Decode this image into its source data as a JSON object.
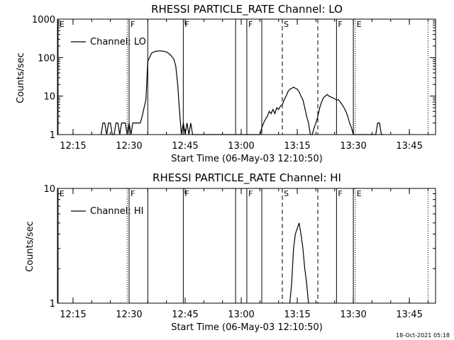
{
  "footer_text": "18-Oct-2021 05:18",
  "chart_data": [
    {
      "type": "line",
      "title": "RHESSI PARTICLE_RATE Channel: LO",
      "xlabel": "Start Time (06-May-03 12:10:50)",
      "ylabel": "Counts/sec",
      "yscale": "log",
      "ylim": [
        1,
        1000
      ],
      "yticks": [
        1,
        10,
        100,
        1000
      ],
      "ytick_labels": [
        "1",
        "10",
        "100",
        "1000"
      ],
      "xlim": [
        "12:10:50",
        "13:52:00"
      ],
      "xtick_labels": [
        "12:15",
        "12:30",
        "12:45",
        "13:00",
        "13:15",
        "13:30",
        "13:45"
      ],
      "legend": {
        "position": "top-left",
        "entries": [
          "Channel: LO"
        ]
      },
      "series": [
        {
          "name": "Channel: LO",
          "x": [
            "12:22:30",
            "12:23:00",
            "12:23:30",
            "12:24:00",
            "12:24:30",
            "12:25:00",
            "12:25:30",
            "12:26:00",
            "12:26:30",
            "12:27:00",
            "12:27:30",
            "12:28:00",
            "12:28:30",
            "12:29:00",
            "12:29:30",
            "12:30:00",
            "12:30:30",
            "12:31:00",
            "12:31:30",
            "12:32:00",
            "12:32:30",
            "12:33:00",
            "12:33:30",
            "12:34:00",
            "12:34:30",
            "12:35:00",
            "12:36:00",
            "12:37:00",
            "12:38:00",
            "12:39:00",
            "12:40:00",
            "12:41:00",
            "12:42:00",
            "12:42:30",
            "12:43:00",
            "12:43:30",
            "12:44:00",
            "12:44:30",
            "12:45:00",
            "12:45:30",
            "12:46:00",
            "12:46:30",
            "12:47:00",
            "13:05:00",
            "13:05:30",
            "13:06:00",
            "13:06:30",
            "13:07:00",
            "13:07:30",
            "13:08:00",
            "13:08:30",
            "13:09:00",
            "13:09:30",
            "13:10:00",
            "13:10:30",
            "13:11:00",
            "13:11:30",
            "13:12:00",
            "13:12:30",
            "13:13:00",
            "13:13:30",
            "13:14:00",
            "13:14:30",
            "13:15:00",
            "13:15:30",
            "13:16:00",
            "13:16:30",
            "13:17:00",
            "13:17:30",
            "13:18:00",
            "13:18:30",
            "13:19:00",
            "13:19:30",
            "13:20:00",
            "13:20:30",
            "13:21:00",
            "13:21:30",
            "13:22:00",
            "13:22:30",
            "13:23:00",
            "13:23:30",
            "13:24:00",
            "13:24:30",
            "13:25:00",
            "13:25:30",
            "13:26:00",
            "13:26:30",
            "13:27:00",
            "13:27:30",
            "13:28:00",
            "13:28:30",
            "13:29:00",
            "13:29:30",
            "13:30:00",
            "13:30:30",
            "13:31:00",
            "13:31:30",
            "13:32:00",
            "13:32:30",
            "13:33:00",
            "13:36:00",
            "13:36:30",
            "13:37:00",
            "13:37:30",
            "13:38:00"
          ],
          "y": [
            1,
            2,
            2,
            1,
            2,
            2,
            1,
            1,
            2,
            2,
            1,
            2,
            2,
            2,
            1,
            2,
            1,
            2,
            2,
            2,
            2,
            2,
            3,
            5,
            8,
            80,
            130,
            145,
            150,
            148,
            140,
            120,
            90,
            60,
            20,
            4,
            1,
            2,
            1,
            2,
            1,
            2,
            1,
            1,
            1.5,
            2,
            2.5,
            3,
            4,
            3.5,
            4.5,
            3.5,
            5,
            4.5,
            5.5,
            6,
            8,
            10,
            13,
            15,
            16,
            17,
            16,
            15,
            13,
            10,
            8,
            5,
            3,
            2,
            1,
            1,
            1.5,
            2,
            3,
            5,
            7,
            9,
            10,
            11,
            10,
            9.5,
            9,
            8.5,
            8,
            8,
            7,
            6,
            5,
            4,
            3,
            2,
            1.5,
            1,
            1,
            1,
            1,
            1,
            1,
            1,
            1,
            2,
            2,
            1,
            1
          ]
        }
      ],
      "vertical_markers": [
        {
          "time": "12:11:00",
          "style": "solid",
          "label": "E"
        },
        {
          "time": "12:29:30",
          "style": "dotted",
          "label": ""
        },
        {
          "time": "12:30:00",
          "style": "solid",
          "label": "F"
        },
        {
          "time": "12:35:00",
          "style": "solid",
          "label": ""
        },
        {
          "time": "12:44:30",
          "style": "solid",
          "label": "F"
        },
        {
          "time": "12:58:30",
          "style": "solid",
          "label": ""
        },
        {
          "time": "13:01:30",
          "style": "solid",
          "label": "F"
        },
        {
          "time": "13:05:30",
          "style": "solid",
          "label": ""
        },
        {
          "time": "13:11:00",
          "style": "dashed",
          "label": "S"
        },
        {
          "time": "13:20:30",
          "style": "dashed",
          "label": ""
        },
        {
          "time": "13:25:30",
          "style": "solid",
          "label": "F"
        },
        {
          "time": "13:30:00",
          "style": "solid",
          "label": ""
        },
        {
          "time": "13:30:30",
          "style": "dotted",
          "label": "E"
        },
        {
          "time": "13:50:00",
          "style": "dotted",
          "label": ""
        }
      ]
    },
    {
      "type": "line",
      "title": "RHESSI PARTICLE_RATE Channel: HI",
      "xlabel": "Start Time (06-May-03 12:10:50)",
      "ylabel": "Counts/sec",
      "yscale": "log",
      "ylim": [
        1,
        10
      ],
      "yticks": [
        1,
        10
      ],
      "ytick_labels": [
        "1",
        "10"
      ],
      "xlim": [
        "12:10:50",
        "13:52:00"
      ],
      "xtick_labels": [
        "12:15",
        "12:30",
        "12:45",
        "13:00",
        "13:15",
        "13:30",
        "13:45"
      ],
      "legend": {
        "position": "top-left",
        "entries": [
          "Channel: HI"
        ]
      },
      "series": [
        {
          "name": "Channel: HI",
          "x": [
            "13:13:00",
            "13:13:30",
            "13:14:00",
            "13:14:30",
            "13:15:00",
            "13:15:30",
            "13:16:00",
            "13:16:30",
            "13:17:00",
            "13:17:30",
            "13:18:00"
          ],
          "y": [
            1,
            1.5,
            3,
            4,
            4.5,
            5,
            4,
            3,
            2,
            1.5,
            1
          ]
        }
      ],
      "vertical_markers": [
        {
          "time": "12:11:00",
          "style": "solid",
          "label": "E"
        },
        {
          "time": "12:29:30",
          "style": "dotted",
          "label": ""
        },
        {
          "time": "12:30:00",
          "style": "solid",
          "label": "F"
        },
        {
          "time": "12:35:00",
          "style": "solid",
          "label": ""
        },
        {
          "time": "12:44:30",
          "style": "solid",
          "label": "F"
        },
        {
          "time": "12:58:30",
          "style": "solid",
          "label": ""
        },
        {
          "time": "13:01:30",
          "style": "solid",
          "label": "F"
        },
        {
          "time": "13:05:30",
          "style": "solid",
          "label": ""
        },
        {
          "time": "13:11:00",
          "style": "dashed",
          "label": "S"
        },
        {
          "time": "13:20:30",
          "style": "dashed",
          "label": ""
        },
        {
          "time": "13:25:30",
          "style": "solid",
          "label": "F"
        },
        {
          "time": "13:30:00",
          "style": "solid",
          "label": ""
        },
        {
          "time": "13:30:30",
          "style": "dotted",
          "label": "E"
        },
        {
          "time": "13:50:00",
          "style": "dotted",
          "label": ""
        }
      ]
    }
  ]
}
